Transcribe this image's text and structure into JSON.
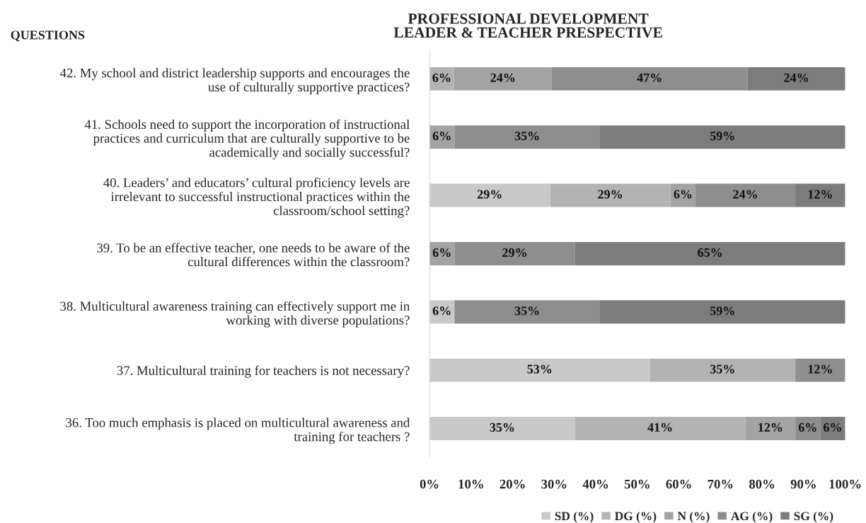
{
  "chart_data": {
    "type": "bar",
    "orientation": "horizontal",
    "stacked": true,
    "title": "PROFESSIONAL DEVELOPMENT\nLEADER & TEACHER PRESPECTIVE",
    "ylabel": "QUESTIONS",
    "categories": [
      "42. My school and district leadership supports and encourages the\nuse of culturally supportive practices?",
      "41. Schools need to support the incorporation of instructional\npractices and curriculum that are culturally supportive to be\nacademically and socially successful?",
      "40. Leaders’ and educators’ cultural proficiency levels are\nirrelevant to successful instructional practices within the\nclassroom/school setting?",
      "39. To be an effective teacher, one needs to be aware of the\ncultural differences within the classroom?",
      "38. Multicultural awareness training can effectively support me in\nworking with diverse populations?",
      "37. Multicultural training for teachers is not necessary?",
      "36. Too much emphasis is placed on multicultural awareness and\ntraining for teachers ?"
    ],
    "series": [
      {
        "name": "SD (%)",
        "color": "#c9c9c9",
        "values": [
          null,
          null,
          29,
          null,
          6,
          53,
          35
        ],
        "value_labels": [
          null,
          null,
          "29%",
          null,
          "6%",
          "53%",
          "35%"
        ]
      },
      {
        "name": "DG (%)",
        "color": "#b3b3b3",
        "values": [
          5.9,
          null,
          29,
          null,
          null,
          35,
          41
        ],
        "value_labels": [
          "6%",
          null,
          "29%",
          null,
          null,
          "35%",
          "41%"
        ]
      },
      {
        "name": "N (%)",
        "color": "#a3a3a3",
        "values": [
          23.5,
          6,
          6,
          6,
          null,
          null,
          12
        ],
        "value_labels": [
          "24%",
          "6%",
          "6%",
          "6%",
          null,
          null,
          "12%"
        ]
      },
      {
        "name": "AG (%)",
        "color": "#8e8e8e",
        "values": [
          47.1,
          35,
          24,
          29,
          35,
          12,
          6
        ],
        "value_labels": [
          "47%",
          "35%",
          "24%",
          "29%",
          "35%",
          "12%",
          "6%"
        ]
      },
      {
        "name": "SG (%)",
        "color": "#7c7c7c",
        "values": [
          23.5,
          59,
          12,
          65,
          59,
          null,
          6
        ],
        "value_labels": [
          "24%",
          "59%",
          "12%",
          "65%",
          "59%",
          null,
          "6%"
        ]
      }
    ],
    "xlim": [
      0,
      100
    ],
    "xticks": [
      {
        "value": 0,
        "label": "0%"
      },
      {
        "value": 10,
        "label": "10%"
      },
      {
        "value": 20,
        "label": "20%"
      },
      {
        "value": 30,
        "label": "30%"
      },
      {
        "value": 40,
        "label": "40%"
      },
      {
        "value": 50,
        "label": "50%"
      },
      {
        "value": 60,
        "label": "60%"
      },
      {
        "value": 70,
        "label": "70%"
      },
      {
        "value": 80,
        "label": "80%"
      },
      {
        "value": 90,
        "label": "90%"
      },
      {
        "value": 100,
        "label": "100%"
      }
    ],
    "legend": "bottom",
    "grid": false
  }
}
